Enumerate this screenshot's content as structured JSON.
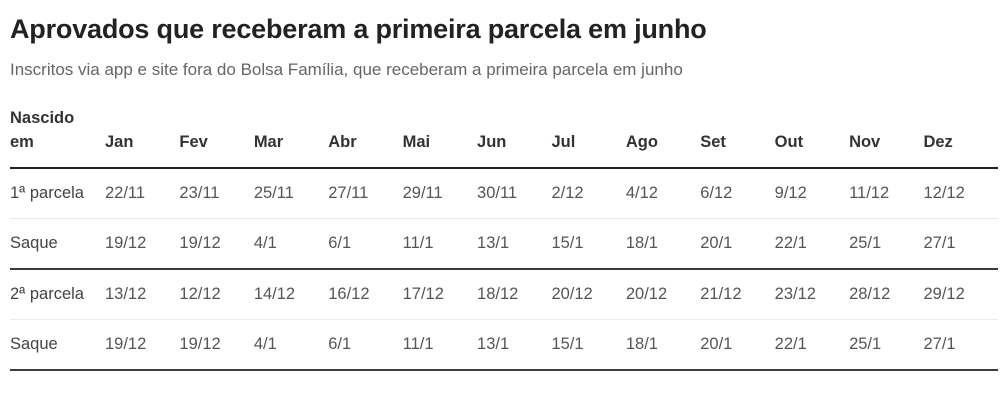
{
  "header": {
    "title": "Aprovados que receberam a primeira parcela em junho",
    "subtitle": "Inscritos via app e site fora do Bolsa Família, que receberam a primeira parcela em junho"
  },
  "chart_data": {
    "type": "table",
    "columns": [
      "Nascido em",
      "Jan",
      "Fev",
      "Mar",
      "Abr",
      "Mai",
      "Jun",
      "Jul",
      "Ago",
      "Set",
      "Out",
      "Nov",
      "Dez"
    ],
    "rows": [
      {
        "label": "1ª parcela",
        "values": [
          "22/11",
          "23/11",
          "25/11",
          "27/11",
          "29/11",
          "30/11",
          "2/12",
          "4/12",
          "6/12",
          "9/12",
          "11/12",
          "12/12"
        ]
      },
      {
        "label": "Saque",
        "values": [
          "19/12",
          "19/12",
          "4/1",
          "6/1",
          "11/1",
          "13/1",
          "15/1",
          "18/1",
          "20/1",
          "22/1",
          "25/1",
          "27/1"
        ]
      },
      {
        "label": "2ª parcela",
        "values": [
          "13/12",
          "12/12",
          "14/12",
          "16/12",
          "17/12",
          "18/12",
          "20/12",
          "20/12",
          "21/12",
          "23/12",
          "28/12",
          "29/12"
        ]
      },
      {
        "label": "Saque",
        "values": [
          "19/12",
          "19/12",
          "4/1",
          "6/1",
          "11/1",
          "13/1",
          "15/1",
          "18/1",
          "20/1",
          "22/1",
          "25/1",
          "27/1"
        ]
      }
    ]
  },
  "colors": {
    "title_text": "#222222",
    "subtitle_text": "#666666",
    "header_text": "#333333",
    "cell_text": "#555555",
    "header_rule": "#222222",
    "dark_divider": "#3d3d3d",
    "light_divider": "#ebebeb",
    "background": "#ffffff"
  }
}
